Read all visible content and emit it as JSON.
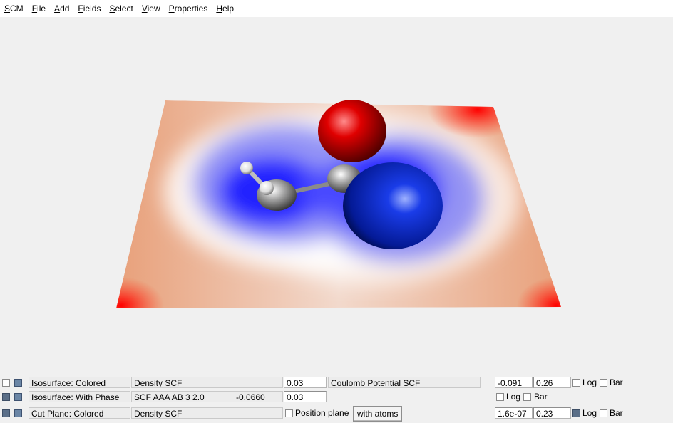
{
  "menubar": {
    "items": [
      "SCM",
      "File",
      "Add",
      "Fields",
      "Select",
      "View",
      "Properties",
      "Help"
    ]
  },
  "viewport": {
    "colors": {
      "negative": "#1a1aff",
      "neutral": "#ffffff",
      "positive": "#ff0000",
      "oxygen_lobe": "#d40000",
      "phase_lobe": "#0a22c8",
      "carbon": "#9a9a9a",
      "hydrogen": "#ffffff"
    }
  },
  "rows": [
    {
      "visible": false,
      "type_label": "Isosurface: Colored",
      "field": "Density SCF",
      "value": "0.03",
      "color_field": "Coulomb Potential SCF",
      "min": "-0.091",
      "max": "0.26",
      "log_label": "Log",
      "bar_label": "Bar"
    },
    {
      "visible": true,
      "type_label": "Isosurface: With Phase",
      "field": "SCF AAA AB 3 2.0",
      "field_value": "-0.0660",
      "value": "0.03",
      "log_label": "Log",
      "bar_label": "Bar"
    },
    {
      "visible": true,
      "type_label": "Cut Plane: Colored",
      "field": "Density SCF",
      "position_label": "Position plane",
      "button_label": "with atoms",
      "min": "1.6e-07",
      "max": "0.23",
      "log_label": "Log",
      "bar_label": "Bar"
    }
  ]
}
